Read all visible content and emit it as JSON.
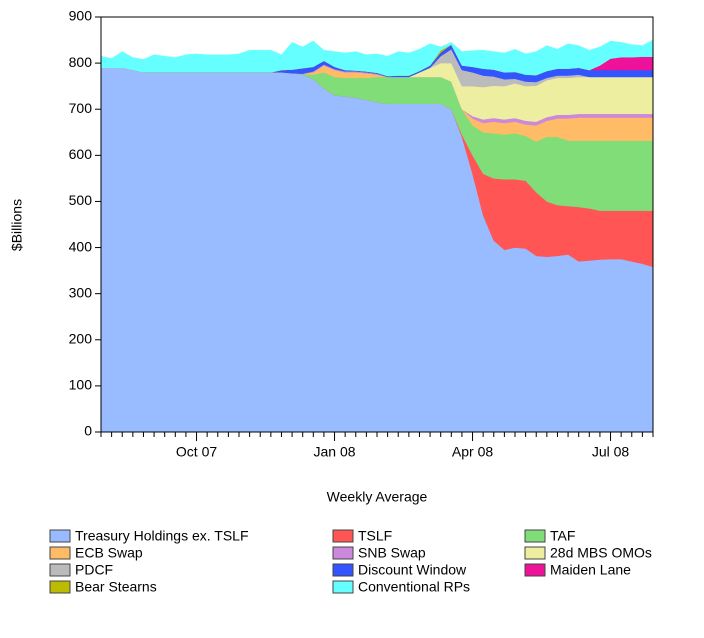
{
  "chart_data": {
    "type": "stacked_area",
    "y_label": "$Billions",
    "x_label": "Weekly Average",
    "categories": [
      null,
      null,
      null,
      null,
      null,
      null,
      null,
      null,
      null,
      "Oct 07",
      null,
      null,
      null,
      null,
      null,
      null,
      null,
      null,
      null,
      null,
      null,
      null,
      "Jan 08",
      null,
      null,
      null,
      null,
      null,
      null,
      null,
      null,
      null,
      null,
      null,
      null,
      "Apr 08",
      null,
      null,
      null,
      null,
      null,
      null,
      null,
      null,
      null,
      null,
      null,
      null,
      "Jul 08",
      null,
      null,
      null,
      null
    ],
    "ylim": [
      0,
      900
    ],
    "yticks": [
      0,
      100,
      200,
      300,
      400,
      500,
      600,
      700,
      800,
      900
    ],
    "grid": false,
    "legend": "bottom",
    "series": [
      {
        "name": "Treasury Holdings ex. TSLF",
        "color": "#99bbff",
        "values": [
          790,
          790,
          790,
          785,
          780,
          780,
          780,
          780,
          780,
          780,
          780,
          780,
          780,
          780,
          780,
          780,
          780,
          780,
          778,
          775,
          765,
          745,
          730,
          728,
          725,
          720,
          715,
          712,
          712,
          712,
          712,
          712,
          712,
          700,
          640,
          560,
          470,
          415,
          395,
          400,
          398,
          382,
          380,
          382,
          385,
          370,
          372,
          374,
          375,
          375,
          370,
          365,
          358
        ]
      },
      {
        "name": "TSLF",
        "color": "#ff5555",
        "values": [
          0,
          0,
          0,
          0,
          0,
          0,
          0,
          0,
          0,
          0,
          0,
          0,
          0,
          0,
          0,
          0,
          0,
          0,
          0,
          0,
          0,
          0,
          0,
          0,
          0,
          0,
          0,
          0,
          0,
          0,
          0,
          0,
          0,
          0,
          5,
          40,
          90,
          135,
          153,
          148,
          147,
          138,
          120,
          110,
          105,
          118,
          113,
          106,
          105,
          105,
          110,
          115,
          122
        ]
      },
      {
        "name": "TAF",
        "color": "#80dd77",
        "values": [
          0,
          0,
          0,
          0,
          0,
          0,
          0,
          0,
          0,
          0,
          0,
          0,
          0,
          0,
          0,
          0,
          0,
          0,
          0,
          2,
          10,
          35,
          40,
          40,
          43,
          48,
          55,
          58,
          58,
          58,
          58,
          58,
          58,
          60,
          55,
          65,
          90,
          98,
          97,
          100,
          97,
          110,
          140,
          148,
          142,
          144,
          147,
          152,
          152,
          152,
          152,
          152,
          152
        ]
      },
      {
        "name": "ECB Swap",
        "color": "#ffbb66",
        "values": [
          0,
          0,
          0,
          0,
          0,
          0,
          0,
          0,
          0,
          0,
          0,
          0,
          0,
          0,
          0,
          0,
          0,
          0,
          0,
          0,
          5,
          15,
          15,
          12,
          12,
          10,
          5,
          0,
          0,
          0,
          0,
          0,
          0,
          0,
          0,
          15,
          20,
          25,
          25,
          25,
          25,
          35,
          35,
          40,
          48,
          50,
          50,
          50,
          50,
          50,
          50,
          50,
          50
        ]
      },
      {
        "name": "SNB Swap",
        "color": "#cc88dd",
        "values": [
          0,
          0,
          0,
          0,
          0,
          0,
          0,
          0,
          0,
          0,
          0,
          0,
          0,
          0,
          0,
          0,
          0,
          0,
          0,
          0,
          2,
          2,
          2,
          2,
          2,
          2,
          2,
          0,
          0,
          0,
          0,
          0,
          0,
          0,
          0,
          5,
          8,
          8,
          8,
          8,
          8,
          8,
          8,
          8,
          8,
          8,
          8,
          8,
          8,
          8,
          8,
          8,
          8
        ]
      },
      {
        "name": "28d MBS OMOs",
        "color": "#eeeea0",
        "values": [
          0,
          0,
          0,
          0,
          0,
          0,
          0,
          0,
          0,
          0,
          0,
          0,
          0,
          0,
          0,
          0,
          0,
          0,
          0,
          0,
          0,
          0,
          0,
          0,
          0,
          0,
          0,
          0,
          0,
          0,
          10,
          20,
          30,
          40,
          50,
          65,
          70,
          70,
          72,
          75,
          75,
          78,
          80,
          80,
          80,
          80,
          80,
          80,
          80,
          80,
          80,
          80,
          80
        ]
      },
      {
        "name": "PDCF",
        "color": "#bbbbbb",
        "values": [
          0,
          0,
          0,
          0,
          0,
          0,
          0,
          0,
          0,
          0,
          0,
          0,
          0,
          0,
          0,
          0,
          0,
          0,
          0,
          0,
          0,
          0,
          0,
          0,
          0,
          0,
          0,
          0,
          0,
          0,
          0,
          0,
          15,
          30,
          35,
          30,
          25,
          20,
          15,
          10,
          10,
          8,
          5,
          5,
          5,
          5,
          0,
          0,
          0,
          0,
          0,
          0,
          0
        ]
      },
      {
        "name": "Discount Window",
        "color": "#3355ff",
        "values": [
          0,
          0,
          0,
          0,
          0,
          0,
          0,
          0,
          0,
          0,
          0,
          0,
          0,
          0,
          0,
          0,
          0,
          5,
          8,
          12,
          10,
          8,
          5,
          3,
          2,
          2,
          2,
          2,
          3,
          3,
          3,
          5,
          8,
          10,
          10,
          12,
          15,
          15,
          15,
          15,
          15,
          15,
          15,
          15,
          15,
          15,
          15,
          15,
          15,
          15,
          15,
          15,
          15
        ]
      },
      {
        "name": "Maiden Lane",
        "color": "#ee1199",
        "values": [
          0,
          0,
          0,
          0,
          0,
          0,
          0,
          0,
          0,
          0,
          0,
          0,
          0,
          0,
          0,
          0,
          0,
          0,
          0,
          0,
          0,
          0,
          0,
          0,
          0,
          0,
          0,
          0,
          0,
          0,
          0,
          0,
          0,
          0,
          0,
          0,
          0,
          0,
          0,
          0,
          0,
          0,
          0,
          0,
          0,
          0,
          0,
          10,
          25,
          28,
          28,
          29,
          29
        ]
      },
      {
        "name": "Bear Stearns",
        "color": "#bbbb00",
        "values": [
          0,
          0,
          0,
          0,
          0,
          0,
          0,
          0,
          0,
          0,
          0,
          0,
          0,
          0,
          0,
          0,
          0,
          0,
          0,
          0,
          0,
          0,
          0,
          0,
          0,
          0,
          0,
          0,
          0,
          0,
          0,
          0,
          5,
          0,
          0,
          0,
          0,
          0,
          0,
          0,
          0,
          0,
          0,
          0,
          0,
          0,
          0,
          0,
          0,
          0,
          0,
          0,
          0
        ]
      },
      {
        "name": "Conventional RPs",
        "color": "#66ffff",
        "values": [
          25,
          20,
          35,
          27,
          28,
          38,
          35,
          32,
          38,
          40,
          38,
          38,
          38,
          40,
          48,
          48,
          48,
          33,
          59,
          46,
          56,
          23,
          33,
          37,
          41,
          36,
          41,
          43,
          52,
          49,
          47,
          47,
          7,
          5,
          30,
          35,
          40,
          39,
          42,
          49,
          45,
          51,
          55,
          42,
          54,
          48,
          43,
          40,
          38,
          32,
          27,
          24,
          36
        ]
      }
    ]
  }
}
